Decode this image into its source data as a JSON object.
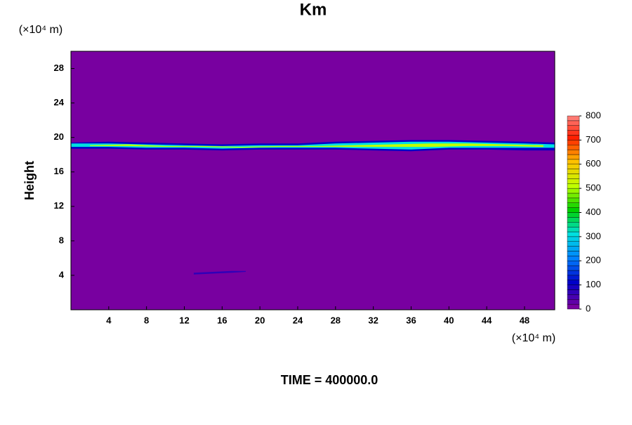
{
  "chart_data": {
    "type": "contour",
    "title": "Km",
    "y_label": "Height",
    "x_unit": "(×10⁴ m)",
    "y_unit": "(×10⁴ m)",
    "footer": "TIME = 400000.0",
    "xlim": [
      0,
      51.2
    ],
    "ylim": [
      0,
      30
    ],
    "xticks": [
      4,
      8,
      12,
      16,
      20,
      24,
      28,
      32,
      36,
      40,
      44,
      48
    ],
    "yticks": [
      4,
      8,
      12,
      16,
      20,
      24,
      28
    ],
    "background": "#7800a0",
    "clim": [
      0,
      800
    ],
    "cticks": [
      0,
      100,
      200,
      300,
      400,
      500,
      600,
      700,
      800
    ],
    "colormap": [
      "#7800a0",
      "#0000c8",
      "#0080ff",
      "#00e0e0",
      "#00d000",
      "#c0ff00",
      "#ffc000",
      "#ff2000",
      "#ff9090"
    ],
    "contour_interval": 20,
    "contours": [
      {
        "level": 100,
        "x": [
          0,
          4,
          8,
          12,
          16,
          20,
          24,
          28,
          32,
          36,
          40,
          44,
          48,
          51.2
        ],
        "ylow": [
          18.7,
          18.7,
          18.6,
          18.6,
          18.5,
          18.6,
          18.6,
          18.6,
          18.5,
          18.4,
          18.6,
          18.6,
          18.5,
          18.5
        ],
        "yhigh": [
          19.4,
          19.5,
          19.4,
          19.3,
          19.2,
          19.3,
          19.3,
          19.5,
          19.6,
          19.7,
          19.7,
          19.6,
          19.5,
          19.4
        ]
      },
      {
        "level": 300,
        "x": [
          0,
          4,
          8,
          12,
          16,
          20,
          24,
          28,
          32,
          36,
          40,
          44,
          48,
          51.2
        ],
        "ylow": [
          18.9,
          18.9,
          18.8,
          18.8,
          18.7,
          18.8,
          18.8,
          18.8,
          18.7,
          18.6,
          18.8,
          18.8,
          18.8,
          18.8
        ],
        "yhigh": [
          19.3,
          19.3,
          19.2,
          19.1,
          19.0,
          19.1,
          19.1,
          19.3,
          19.4,
          19.5,
          19.5,
          19.4,
          19.3,
          19.2
        ]
      },
      {
        "level": 500,
        "x": [
          2,
          6,
          10,
          14,
          18,
          22,
          26,
          30,
          34,
          38,
          42,
          46,
          50
        ],
        "ylow": [
          19.0,
          19.0,
          18.9,
          18.9,
          18.8,
          18.9,
          18.9,
          18.9,
          18.9,
          18.9,
          19.0,
          19.0,
          18.9
        ],
        "yhigh": [
          19.1,
          19.2,
          19.0,
          19.0,
          18.9,
          19.0,
          19.0,
          19.1,
          19.2,
          19.3,
          19.3,
          19.2,
          19.1
        ]
      },
      {
        "level": 60,
        "x": [
          13,
          15,
          17,
          18.5
        ],
        "ylow": [
          4.1,
          4.2,
          4.3,
          4.4
        ],
        "yhigh": [
          4.3,
          4.4,
          4.5,
          4.5
        ]
      }
    ]
  }
}
